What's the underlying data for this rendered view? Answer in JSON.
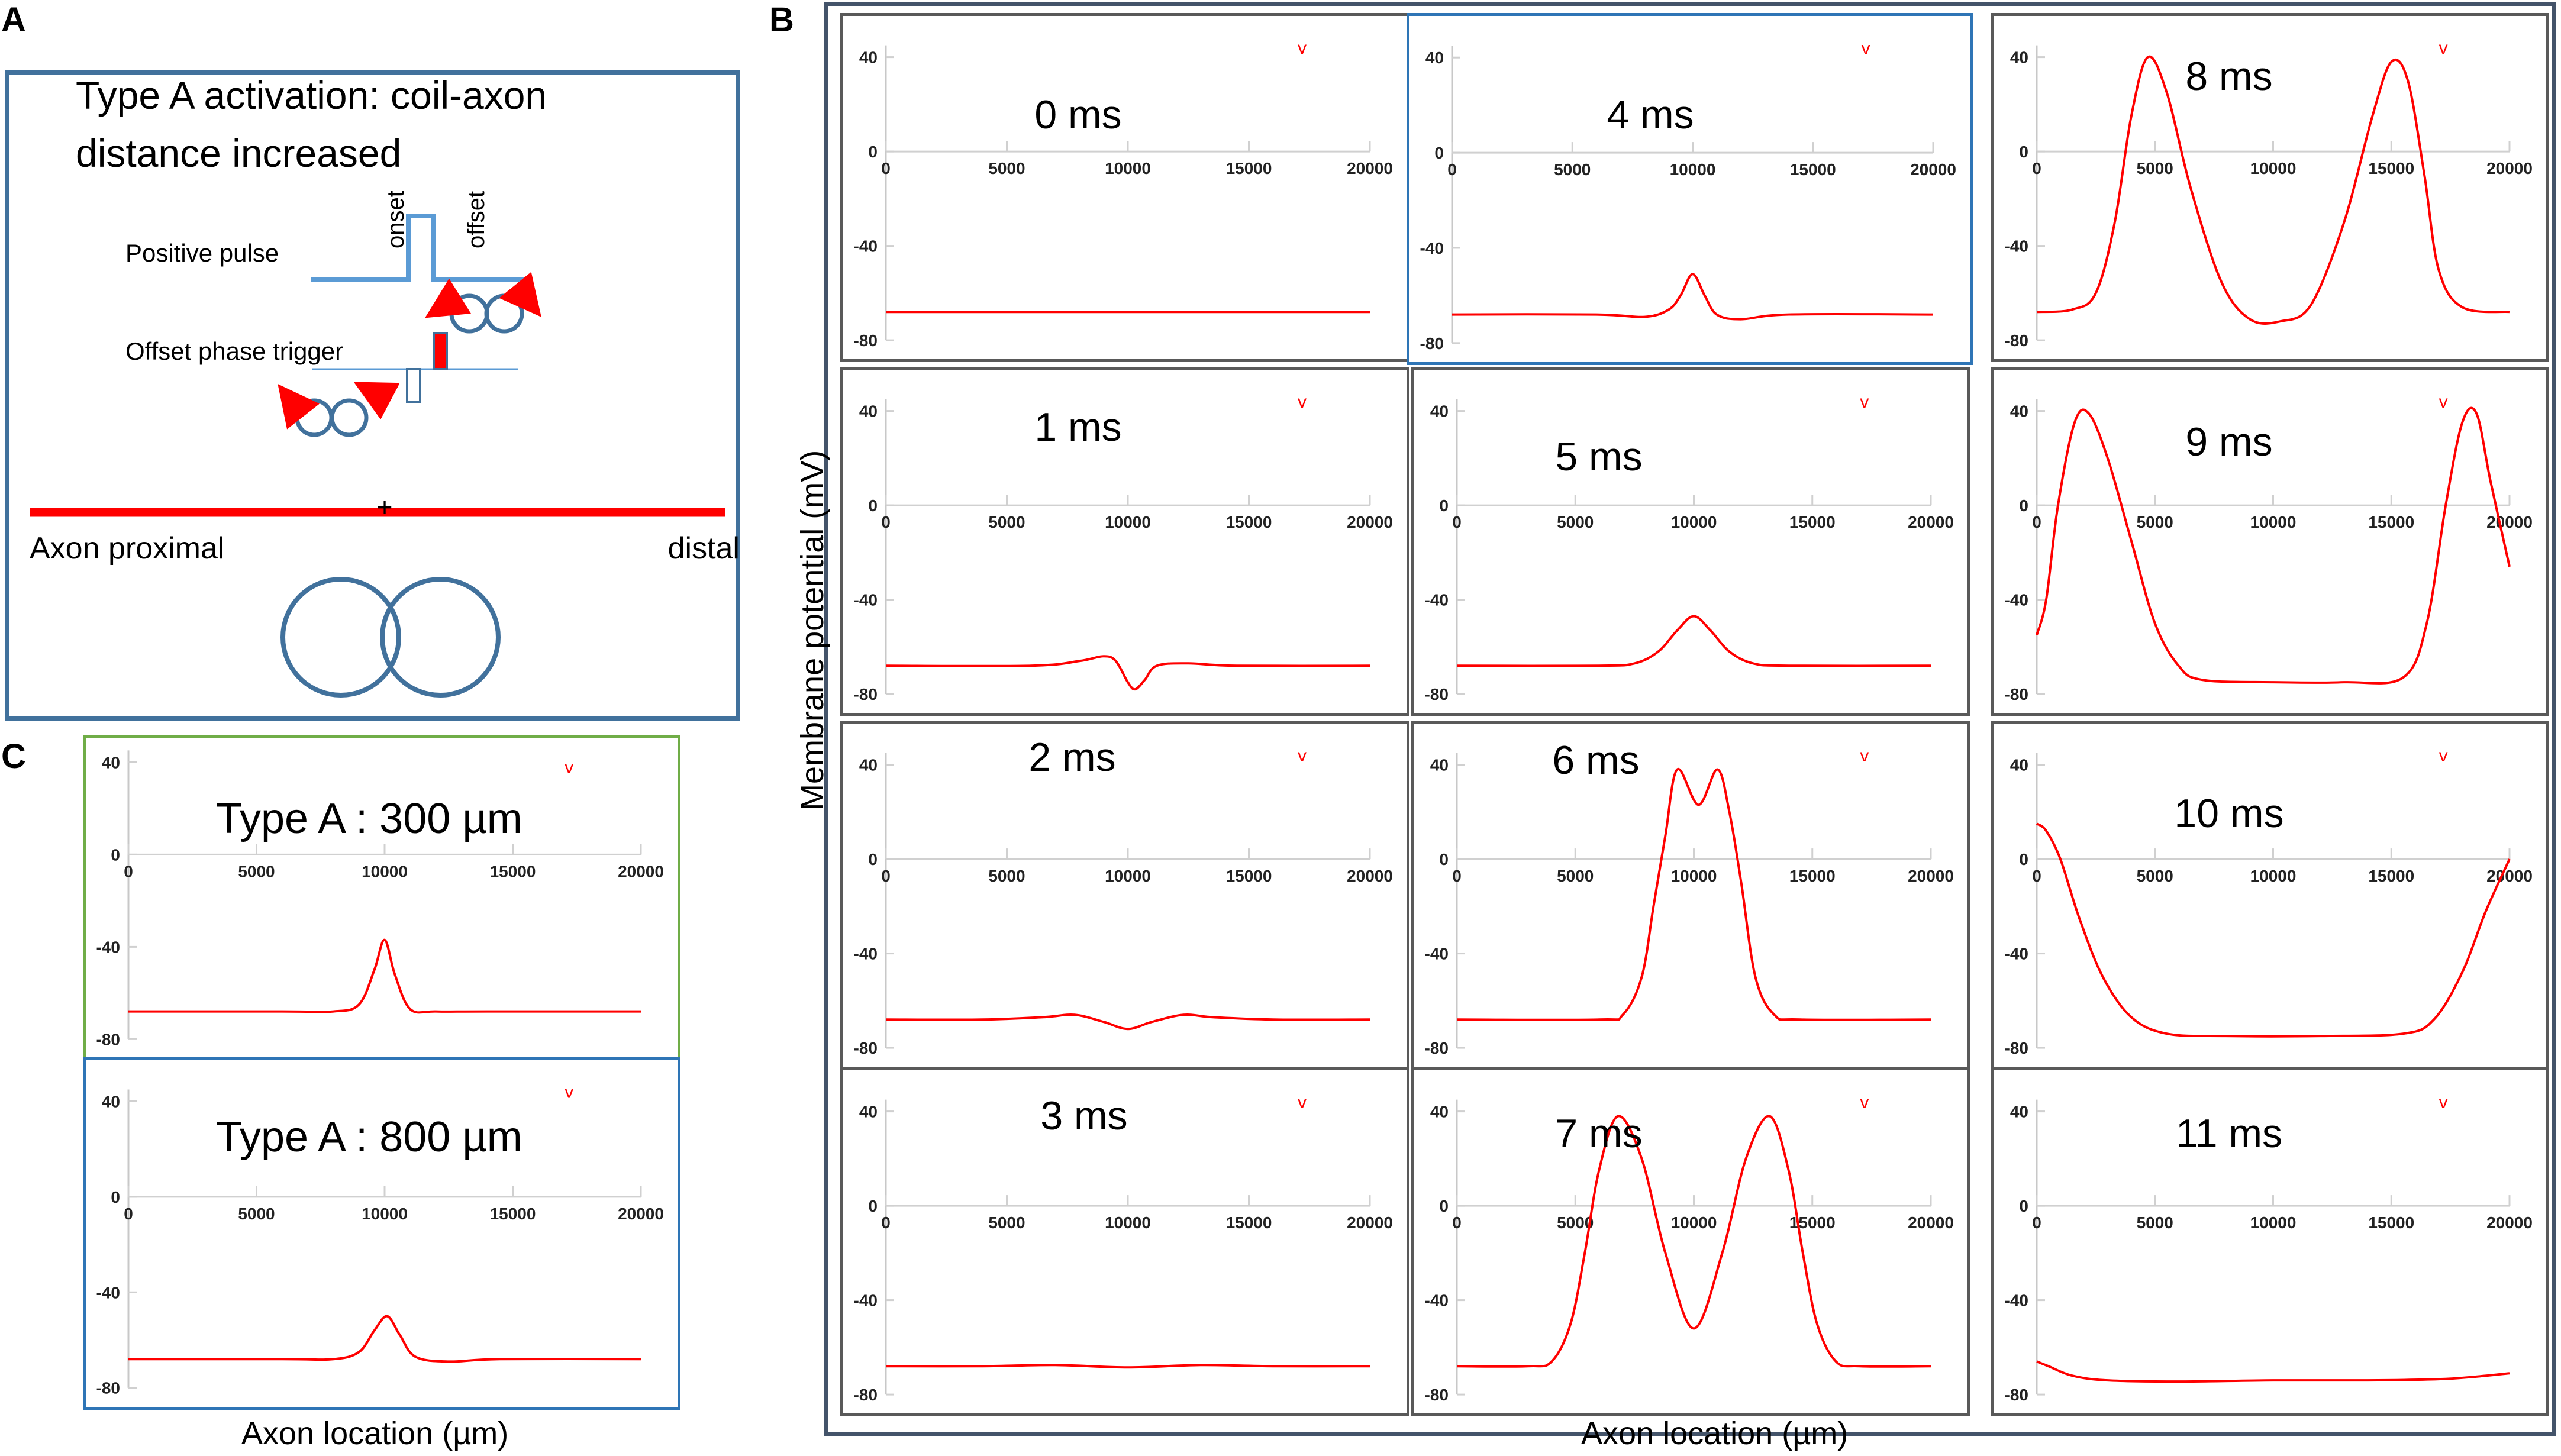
{
  "panel_labels": {
    "a": "A",
    "b": "B",
    "c": "C"
  },
  "diagram": {
    "title_line1": "Type A activation: coil-axon",
    "title_line2": "distance increased",
    "onset_label": "onset",
    "offset_label": "offset",
    "positive_pulse_label": "Positive pulse",
    "offset_trigger_label": "Offset phase trigger",
    "axon_proximal_label": "Axon proximal",
    "distal_label": "distal",
    "plus_sign": "+",
    "colors": {
      "box": "#41719c",
      "axon": "#ff0000",
      "pulse": "#5b9bd5",
      "coil": "#41719c",
      "arrow": "#ff0000"
    }
  },
  "panel_b": {
    "ylabel": "Membrane potential (mV)",
    "xlabel": "Axon location (µm)"
  },
  "panel_c": {
    "xlabel": "Axon location (µm)"
  },
  "chart_data": [
    {
      "id": "b0",
      "type": "line",
      "time_label": "0 ms",
      "marker": "v",
      "xlim": [
        0,
        20000
      ],
      "ylim": [
        -80,
        40
      ],
      "x_ticks": [
        0,
        5000,
        10000,
        15000,
        20000
      ],
      "y_ticks": [
        40,
        0,
        -40,
        -80
      ],
      "grid": false,
      "series": [
        {
          "x": [
            0,
            20000
          ],
          "y": [
            -68,
            -68
          ],
          "color": "#ff0000"
        }
      ]
    },
    {
      "id": "b1",
      "type": "line",
      "time_label": "1 ms",
      "marker": "v",
      "xlim": [
        0,
        20000
      ],
      "ylim": [
        -80,
        40
      ],
      "x_ticks": [
        0,
        5000,
        10000,
        15000,
        20000
      ],
      "y_ticks": [
        40,
        0,
        -40,
        -80
      ],
      "grid": false,
      "series": [
        {
          "x": [
            0,
            6000,
            8000,
            9000,
            9500,
            10000,
            10300,
            10700,
            11200,
            12500,
            14500,
            20000
          ],
          "y": [
            -68,
            -68,
            -66,
            -64,
            -66,
            -75,
            -78,
            -74,
            -68,
            -67,
            -68,
            -68
          ],
          "color": "#ff0000"
        }
      ]
    },
    {
      "id": "b2",
      "type": "line",
      "time_label": "2 ms",
      "marker": "v",
      "xlim": [
        0,
        20000
      ],
      "ylim": [
        -80,
        40
      ],
      "x_ticks": [
        0,
        5000,
        10000,
        15000,
        20000
      ],
      "y_ticks": [
        40,
        0,
        -40,
        -80
      ],
      "grid": false,
      "series": [
        {
          "x": [
            0,
            4000,
            6500,
            7800,
            9000,
            10000,
            11000,
            12300,
            13500,
            16000,
            20000
          ],
          "y": [
            -68,
            -68,
            -67,
            -66,
            -69,
            -72,
            -69,
            -66,
            -67,
            -68,
            -68
          ],
          "color": "#ff0000"
        }
      ]
    },
    {
      "id": "b3",
      "type": "line",
      "time_label": "3 ms",
      "marker": "v",
      "xlim": [
        0,
        20000
      ],
      "ylim": [
        -80,
        40
      ],
      "x_ticks": [
        0,
        5000,
        10000,
        15000,
        20000
      ],
      "y_ticks": [
        40,
        0,
        -40,
        -80
      ],
      "grid": false,
      "series": [
        {
          "x": [
            0,
            4000,
            7000,
            10000,
            13000,
            16000,
            20000
          ],
          "y": [
            -68,
            -68,
            -67.5,
            -68.5,
            -67.5,
            -68,
            -68
          ],
          "color": "#ff0000"
        }
      ]
    },
    {
      "id": "b4",
      "type": "line",
      "time_label": "4 ms",
      "marker": "v",
      "xlim": [
        0,
        20000
      ],
      "ylim": [
        -80,
        40
      ],
      "x_ticks": [
        0,
        5000,
        10000,
        15000,
        20000
      ],
      "y_ticks": [
        40,
        0,
        -40,
        -80
      ],
      "grid": false,
      "series": [
        {
          "x": [
            0,
            6000,
            8000,
            9000,
            9500,
            10000,
            10500,
            11000,
            12000,
            14000,
            20000
          ],
          "y": [
            -68,
            -68,
            -69,
            -66,
            -60,
            -51,
            -60,
            -68,
            -70,
            -68,
            -68
          ],
          "color": "#ff0000"
        }
      ]
    },
    {
      "id": "b5",
      "type": "line",
      "time_label": "5 ms",
      "marker": "v",
      "xlim": [
        0,
        20000
      ],
      "ylim": [
        -80,
        40
      ],
      "x_ticks": [
        0,
        5000,
        10000,
        15000,
        20000
      ],
      "y_ticks": [
        40,
        0,
        -40,
        -80
      ],
      "grid": false,
      "series": [
        {
          "x": [
            0,
            6000,
            7500,
            8500,
            9300,
            10000,
            10700,
            11500,
            12500,
            14000,
            20000
          ],
          "y": [
            -68,
            -68,
            -67,
            -62,
            -53,
            -47,
            -53,
            -62,
            -67,
            -68,
            -68
          ],
          "color": "#ff0000"
        }
      ]
    },
    {
      "id": "b6",
      "type": "line",
      "time_label": "6 ms",
      "marker": "v",
      "xlim": [
        0,
        20000
      ],
      "ylim": [
        -80,
        40
      ],
      "x_ticks": [
        0,
        5000,
        10000,
        15000,
        20000
      ],
      "y_ticks": [
        40,
        0,
        -40,
        -80
      ],
      "grid": false,
      "series": [
        {
          "x": [
            0,
            6000,
            7000,
            7800,
            8300,
            8800,
            9300,
            10200,
            11000,
            11500,
            12000,
            12600,
            13400,
            14500,
            20000
          ],
          "y": [
            -68,
            -68,
            -66,
            -50,
            -20,
            10,
            38,
            23,
            38,
            20,
            -10,
            -50,
            -66,
            -68,
            -68
          ],
          "color": "#ff0000"
        }
      ]
    },
    {
      "id": "b7",
      "type": "line",
      "time_label": "7 ms",
      "marker": "v",
      "xlim": [
        0,
        20000
      ],
      "ylim": [
        -80,
        40
      ],
      "x_ticks": [
        0,
        5000,
        10000,
        15000,
        20000
      ],
      "y_ticks": [
        40,
        0,
        -40,
        -80
      ],
      "grid": false,
      "series": [
        {
          "x": [
            0,
            3000,
            4000,
            4800,
            5400,
            6000,
            6800,
            7800,
            8800,
            10000,
            11200,
            12200,
            13200,
            14000,
            14600,
            15200,
            16000,
            17000,
            20000
          ],
          "y": [
            -68,
            -68,
            -66,
            -50,
            -20,
            15,
            38,
            20,
            -20,
            -52,
            -20,
            20,
            38,
            15,
            -20,
            -50,
            -66,
            -68,
            -68
          ],
          "color": "#ff0000"
        }
      ]
    },
    {
      "id": "b8",
      "type": "line",
      "time_label": "8 ms",
      "marker": "v",
      "xlim": [
        0,
        20000
      ],
      "ylim": [
        -80,
        40
      ],
      "x_ticks": [
        0,
        5000,
        10000,
        15000,
        20000
      ],
      "y_ticks": [
        40,
        0,
        -40,
        -80
      ],
      "grid": false,
      "series": [
        {
          "x": [
            0,
            1500,
            2500,
            3300,
            4000,
            4700,
            5500,
            6500,
            7800,
            9000,
            10300,
            11600,
            13000,
            14200,
            15000,
            15700,
            16400,
            17000,
            18000,
            20000
          ],
          "y": [
            -68,
            -67,
            -60,
            -30,
            15,
            40,
            25,
            -15,
            -55,
            -71,
            -72,
            -65,
            -30,
            15,
            38,
            30,
            -10,
            -50,
            -66,
            -68
          ],
          "color": "#ff0000"
        }
      ]
    },
    {
      "id": "b9",
      "type": "line",
      "time_label": "9 ms",
      "marker": "v",
      "xlim": [
        0,
        20000
      ],
      "ylim": [
        -80,
        40
      ],
      "x_ticks": [
        0,
        5000,
        10000,
        15000,
        20000
      ],
      "y_ticks": [
        40,
        0,
        -40,
        -80
      ],
      "grid": false,
      "series": [
        {
          "x": [
            0,
            400,
            900,
            1600,
            2200,
            3000,
            4000,
            5000,
            6000,
            7000,
            10000,
            13000,
            15500,
            16500,
            17300,
            18000,
            18600,
            19200,
            20000
          ],
          "y": [
            -55,
            -40,
            0,
            35,
            39,
            20,
            -15,
            -50,
            -68,
            -74,
            -75,
            -75,
            -73,
            -50,
            0,
            35,
            39,
            10,
            -26
          ],
          "color": "#ff0000"
        }
      ]
    },
    {
      "id": "b10",
      "type": "line",
      "time_label": "10 ms",
      "marker": "v",
      "xlim": [
        0,
        20000
      ],
      "ylim": [
        -80,
        40
      ],
      "x_ticks": [
        0,
        5000,
        10000,
        15000,
        20000
      ],
      "y_ticks": [
        40,
        0,
        -40,
        -80
      ],
      "grid": false,
      "series": [
        {
          "x": [
            0,
            400,
            1000,
            1800,
            2800,
            4000,
            5500,
            8000,
            12000,
            15500,
            16800,
            18000,
            19000,
            20000
          ],
          "y": [
            15,
            12,
            0,
            -25,
            -50,
            -67,
            -74,
            -75,
            -75,
            -74,
            -68,
            -48,
            -22,
            0
          ],
          "color": "#ff0000"
        }
      ]
    },
    {
      "id": "b11",
      "type": "line",
      "time_label": "11 ms",
      "marker": "v",
      "xlim": [
        0,
        20000
      ],
      "ylim": [
        -80,
        40
      ],
      "x_ticks": [
        0,
        5000,
        10000,
        15000,
        20000
      ],
      "y_ticks": [
        40,
        0,
        -40,
        -80
      ],
      "grid": false,
      "series": [
        {
          "x": [
            0,
            500,
            1500,
            3000,
            6000,
            10000,
            14000,
            17000,
            18500,
            20000
          ],
          "y": [
            -66,
            -68,
            -72,
            -74,
            -74.5,
            -74,
            -74,
            -73.5,
            -72.5,
            -71
          ],
          "color": "#ff0000"
        }
      ]
    },
    {
      "id": "c300",
      "type": "line",
      "time_label": "Type A : 300 µm",
      "marker": "v",
      "xlim": [
        0,
        20000
      ],
      "ylim": [
        -80,
        40
      ],
      "x_ticks": [
        0,
        5000,
        10000,
        15000,
        20000
      ],
      "y_ticks": [
        40,
        0,
        -40,
        -80
      ],
      "grid": false,
      "series": [
        {
          "x": [
            0,
            6000,
            8000,
            9000,
            9600,
            10000,
            10400,
            11000,
            12000,
            14000,
            20000
          ],
          "y": [
            -68,
            -68,
            -68,
            -65,
            -50,
            -37,
            -52,
            -67,
            -68,
            -68,
            -68
          ],
          "color": "#ff0000"
        }
      ]
    },
    {
      "id": "c800",
      "type": "line",
      "time_label": "Type A : 800 µm",
      "marker": "v",
      "xlim": [
        0,
        20000
      ],
      "ylim": [
        -80,
        40
      ],
      "x_ticks": [
        0,
        5000,
        10000,
        15000,
        20000
      ],
      "y_ticks": [
        40,
        0,
        -40,
        -80
      ],
      "grid": false,
      "series": [
        {
          "x": [
            0,
            6000,
            8000,
            9000,
            9600,
            10100,
            10600,
            11200,
            12500,
            14500,
            20000
          ],
          "y": [
            -68,
            -68,
            -68,
            -65,
            -56,
            -50,
            -58,
            -67,
            -69,
            -68,
            -68
          ],
          "color": "#ff0000"
        }
      ]
    }
  ]
}
